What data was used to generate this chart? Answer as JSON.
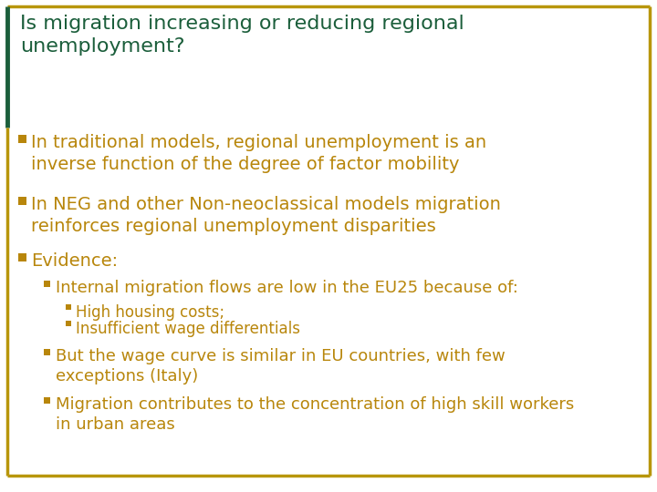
{
  "bg_color": "#ffffff",
  "border_color": "#B8960C",
  "title_color": "#1B5E3B",
  "bullet_color": "#B8860B",
  "title_text": "Is migration increasing or reducing regional\nunemployment?",
  "bullet1": "In traditional models, regional unemployment is an\ninverse function of the degree of factor mobility",
  "bullet2": "In NEG and other Non-neoclassical models migration\nreinforces regional unemployment disparities",
  "bullet3": "Evidence:",
  "sub1": "Internal migration flows are low in the EU25 because of:",
  "subsub1": "High housing costs;",
  "subsub2": "Insufficient wage differentials",
  "sub2": "But the wage curve is similar in EU countries, with few\nexceptions (Italy)",
  "sub3": "Migration contributes to the concentration of high skill workers\nin urban areas",
  "title_fontsize": 16,
  "bullet_fontsize": 14,
  "sub_fontsize": 13,
  "subsub_fontsize": 12
}
